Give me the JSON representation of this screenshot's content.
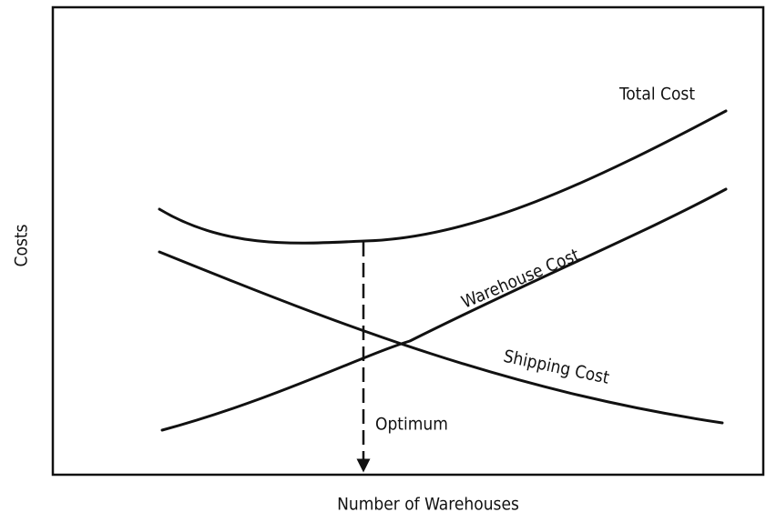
{
  "diagram": {
    "y_axis_label": "Costs",
    "x_axis_label": "Number of Warehouses",
    "curves": [
      {
        "label": "Total Cost"
      },
      {
        "label": "Warehouse Cost"
      },
      {
        "label": "Shipping Cost"
      }
    ],
    "annotation": "Optimum"
  }
}
